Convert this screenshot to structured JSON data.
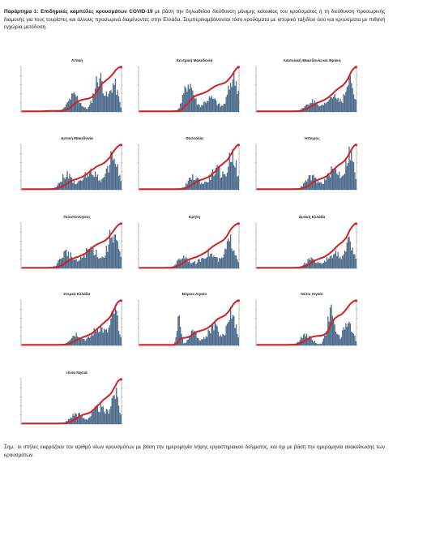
{
  "header": {
    "bold": "Παράρτημα 1: Επιδημικές καμπύλες κρουσμάτων COVID-19",
    "rest": " με βάση την δηλωθείσα διεύθυνση μόνιμης κατοικίας του κρούσματος ή τη διεύθυνση προσωρινής διαμονής για τους τουρίστες και άλλους προσωρινά διαμένοντες στην Ελλάδα. Συμπεριλαμβάνονται τόσο κρούσματα με ιστορικό ταξιδίου όσο και κρούσματα με πιθανή εγχώρια μετάδοση."
  },
  "footer": {
    "text": "Σημ.: οι στήλες εκφράζουν τον αριθμό νέων κρουσμάτων με βάση την ημερομηνία λήψης εργαστηριακού δείγματος, και όχι με βάση την ημερομηνία ανακοίνωσης των κρουσμάτων."
  },
  "colors": {
    "bars": "#4a6a8a",
    "line": "#d42020",
    "axis": "#555555"
  },
  "chart_data": [
    {
      "type": "bar",
      "title": "Αττική",
      "shape": "attica",
      "peak": 0.86
    },
    {
      "type": "bar",
      "title": "Κεντρική Μακεδονία",
      "shape": "macedonia",
      "peak": 0.9
    },
    {
      "type": "bar",
      "title": "Ανατολική Μακεδονία και Θράκη",
      "shape": "late",
      "peak": 0.8
    },
    {
      "type": "bar",
      "title": "Δυτική Μακεδονία",
      "shape": "mid",
      "peak": 0.85
    },
    {
      "type": "bar",
      "title": "Θεσσαλία",
      "shape": "late",
      "peak": 0.9
    },
    {
      "type": "bar",
      "title": "Ήπειρος",
      "shape": "late",
      "peak": 0.95
    },
    {
      "type": "bar",
      "title": "Πελοπόννησος",
      "shape": "mid",
      "peak": 0.85
    },
    {
      "type": "bar",
      "title": "Κρήτη",
      "shape": "mid",
      "peak": 0.75
    },
    {
      "type": "bar",
      "title": "Δυτική Ελλάδα",
      "shape": "late",
      "peak": 0.7
    },
    {
      "type": "bar",
      "title": "Στερεά Ελλάδα",
      "shape": "late",
      "peak": 0.9
    },
    {
      "type": "bar",
      "title": "Βόρειο Αιγαίο",
      "shape": "spiky",
      "peak": 0.85
    },
    {
      "type": "bar",
      "title": "Νότιο Αιγαίο",
      "shape": "south",
      "peak": 0.9
    },
    {
      "type": "bar",
      "title": "Ιόνια Νησιά",
      "shape": "late",
      "peak": 0.8
    }
  ]
}
